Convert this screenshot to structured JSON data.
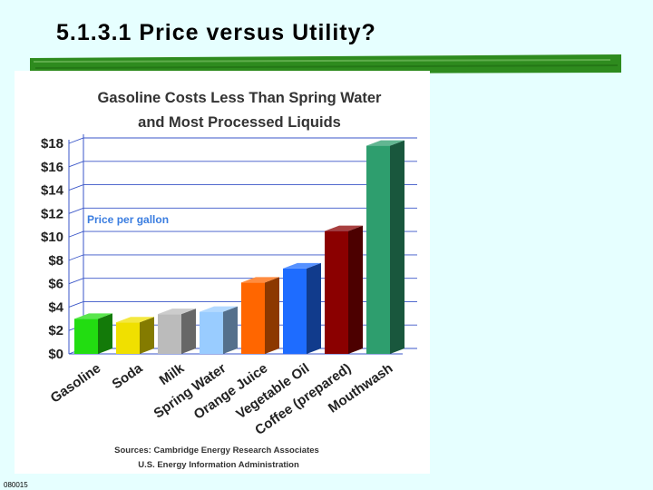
{
  "slide": {
    "title": "5.1.3.1  Price versus Utility?",
    "footer_code": "080015"
  },
  "colors": {
    "background": "#e6ffff",
    "title_underline": "#2e8b1e"
  },
  "chart_data": {
    "type": "bar",
    "title_line1": "Gasoline Costs Less Than Spring Water",
    "title_line2": "and Most Processed Liquids",
    "series_label": "Price per gallon",
    "categories": [
      "Gasoline",
      "Soda",
      "Milk",
      "Spring Water",
      "Orange Juice",
      "Vegetable Oil",
      "Coffee (prepared)",
      "Mouthwash"
    ],
    "values": [
      3.0,
      2.7,
      3.4,
      3.6,
      6.1,
      7.3,
      10.5,
      17.8
    ],
    "bar_colors": [
      "#22dd11",
      "#f0e000",
      "#bbbbbb",
      "#99ccff",
      "#ff6600",
      "#1e6cff",
      "#8b0000",
      "#2e9e6e"
    ],
    "y_ticks": [
      "$0",
      "$2",
      "$4",
      "$6",
      "$8",
      "$10",
      "$12",
      "$14",
      "$16",
      "$18"
    ],
    "ylim": [
      0,
      18
    ],
    "ylabel": "",
    "xlabel": "",
    "grid": true,
    "sources_line1": "Sources: Cambridge Energy Research Associates",
    "sources_line2": "U.S. Energy Information Administration"
  }
}
